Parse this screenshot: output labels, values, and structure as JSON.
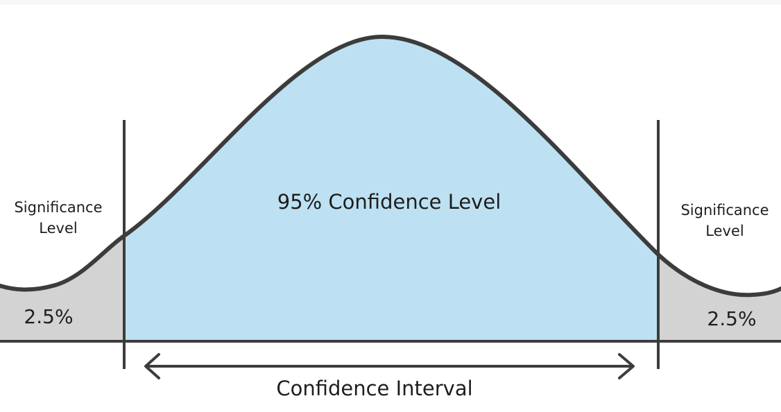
{
  "labels": {
    "center": "95% Confidence Level",
    "interval": "Confidence Interval",
    "left_sig_line1": "Significance",
    "left_sig_line2": "Level",
    "right_sig_line1": "Significance",
    "right_sig_line2": "Level",
    "left_pct": "2.5%",
    "right_pct": "2.5%"
  },
  "colors": {
    "confidence_fill": "#bde1f2",
    "tail_fill": "#d3d3d3",
    "stroke": "#3c3c3c"
  }
}
